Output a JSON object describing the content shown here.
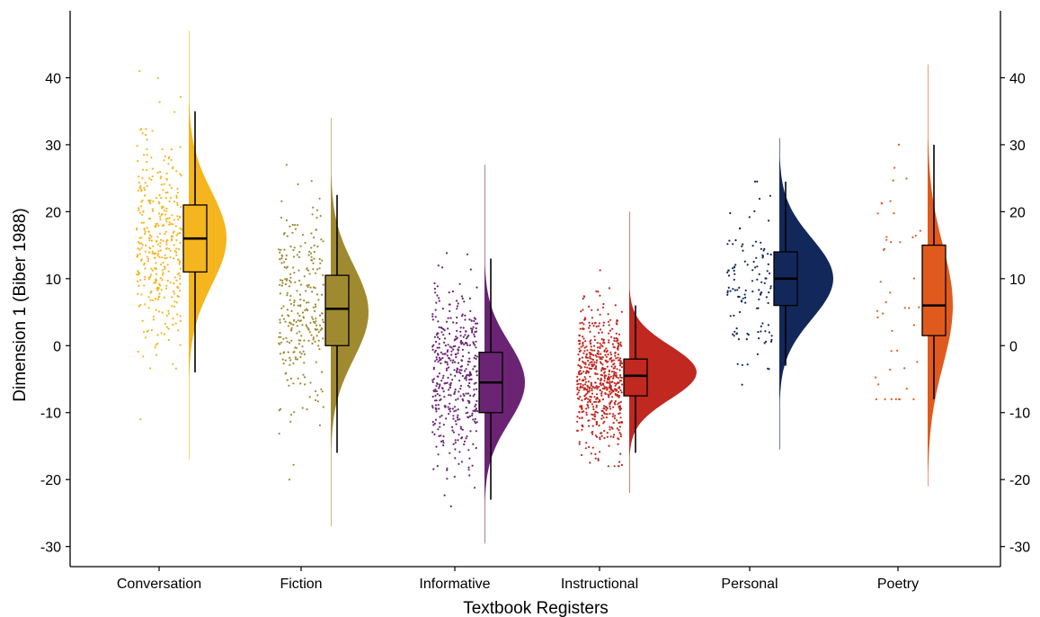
{
  "chart_data": {
    "type": "raincloud",
    "title": "",
    "xlabel": "Textbook Registers",
    "ylabel": "Dimension 1 (Biber 1988)",
    "ylim": [
      -33,
      50
    ],
    "yticks": [
      -30,
      -20,
      -10,
      0,
      10,
      20,
      30,
      40
    ],
    "ytick_labels": [
      "-30",
      "-20",
      "-10",
      "0",
      "10",
      "20",
      "30",
      "40"
    ],
    "secondary_y_axis": true,
    "grid": false,
    "legend": "none",
    "categories": [
      "Conversation",
      "Fiction",
      "Informative",
      "Instructional",
      "Personal",
      "Poetry"
    ],
    "series": [
      {
        "category": "Conversation",
        "color": "#F5B51E",
        "points": 380,
        "box": {
          "whisker_low": -4,
          "q1": 11,
          "median": 16,
          "q3": 21,
          "whisker_high": 35
        },
        "density": {
          "min": -17,
          "max": 47,
          "mode": 16,
          "spread": 7,
          "peak_width": 42
        },
        "scatter": {
          "center": 16,
          "sd": 8,
          "min": -11,
          "max": 41
        }
      },
      {
        "category": "Fiction",
        "color": "#A08A30",
        "points": 280,
        "box": {
          "whisker_low": -16,
          "q1": 0,
          "median": 5.5,
          "q3": 10.5,
          "whisker_high": 22.5
        },
        "density": {
          "min": -27,
          "max": 34,
          "mode": 5,
          "spread": 7,
          "peak_width": 42
        },
        "scatter": {
          "center": 5,
          "sd": 8,
          "min": -20,
          "max": 27
        }
      },
      {
        "category": "Informative",
        "color": "#6A2473",
        "points": 420,
        "box": {
          "whisker_low": -23,
          "q1": -10,
          "median": -5.5,
          "q3": -1,
          "whisker_high": 13
        },
        "density": {
          "min": -29.5,
          "max": 27,
          "mode": -5.5,
          "spread": 6,
          "peak_width": 45
        },
        "scatter": {
          "center": -5,
          "sd": 7,
          "min": -24,
          "max": 21
        }
      },
      {
        "category": "Instructional",
        "color": "#C02820",
        "points": 620,
        "box": {
          "whisker_low": -16,
          "q1": -7.5,
          "median": -4.5,
          "q3": -2,
          "whisker_high": 6
        },
        "density": {
          "min": -22,
          "max": 20,
          "mode": -4,
          "spread": 4,
          "peak_width": 75
        },
        "scatter": {
          "center": -5,
          "sd": 5,
          "min": -18,
          "max": 17
        }
      },
      {
        "category": "Personal",
        "color": "#13285A",
        "points": 120,
        "box": {
          "whisker_low": -3,
          "q1": 6,
          "median": 10,
          "q3": 14,
          "whisker_high": 24.5
        },
        "density": {
          "min": -15.5,
          "max": 31,
          "mode": 10,
          "spread": 6,
          "peak_width": 60
        },
        "scatter": {
          "center": 10,
          "sd": 6,
          "min": -9,
          "max": 24.5
        }
      },
      {
        "category": "Poetry",
        "color": "#E05A1E",
        "points": 45,
        "box": {
          "whisker_low": -8,
          "q1": 1.5,
          "median": 6,
          "q3": 15,
          "whisker_high": 30
        },
        "density": {
          "min": -21,
          "max": 42,
          "mode": 6,
          "spread": 9,
          "peak_width": 28
        },
        "scatter": {
          "center": 6,
          "sd": 10,
          "min": -8,
          "max": 30
        }
      }
    ]
  }
}
